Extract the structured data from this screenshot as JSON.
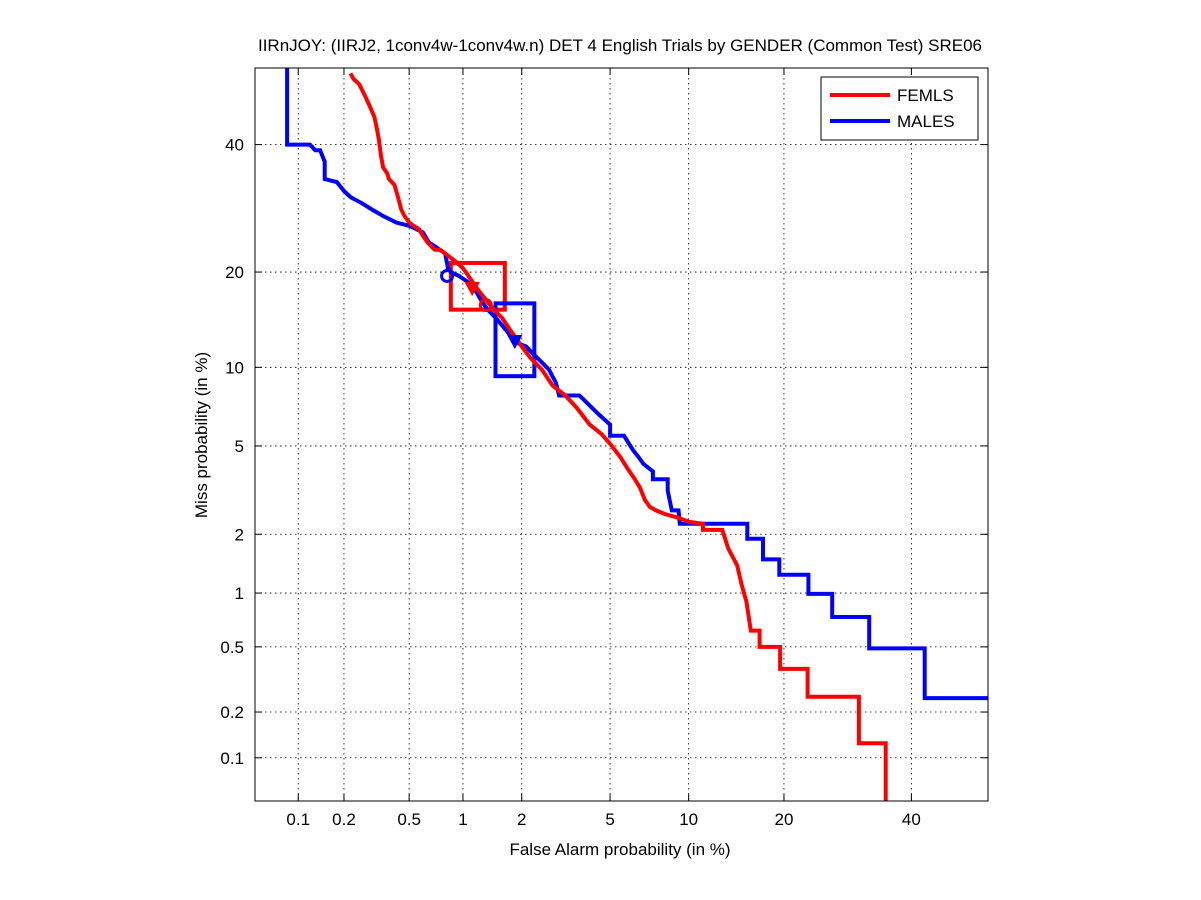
{
  "chart_data": {
    "type": "line",
    "title": "IIRnJOY: (IIRJ2, 1conv4w-1conv4w.n) DET 4 English Trials by GENDER (Common Test) SRE06",
    "xlabel": "False Alarm probability (in %)",
    "ylabel": "Miss probability (in %)",
    "x_scale": "probit",
    "y_scale": "probit",
    "xlim": [
      0.05,
      54
    ],
    "ylim": [
      0.05,
      54
    ],
    "x_ticks": [
      0.1,
      0.2,
      0.5,
      1,
      2,
      5,
      10,
      20,
      40
    ],
    "x_tick_labels": [
      "0.1",
      "0.2",
      "0.5",
      "1",
      "2",
      "5",
      "10",
      "20",
      "40"
    ],
    "y_ticks": [
      0.1,
      0.2,
      0.5,
      1,
      2,
      5,
      10,
      20,
      40
    ],
    "y_tick_labels": [
      "0.1",
      "0.2",
      "0.5",
      "1",
      "2",
      "5",
      "10",
      "20",
      "40"
    ],
    "grid": true,
    "legend_position": "top-right",
    "series": [
      {
        "name": "FEMLS",
        "color": "#ff0000",
        "points": [
          [
            0.22,
            53
          ],
          [
            0.23,
            52
          ],
          [
            0.25,
            51
          ],
          [
            0.27,
            49
          ],
          [
            0.29,
            47
          ],
          [
            0.31,
            45
          ],
          [
            0.32,
            43
          ],
          [
            0.33,
            41
          ],
          [
            0.34,
            38
          ],
          [
            0.35,
            36
          ],
          [
            0.37,
            35
          ],
          [
            0.38,
            34
          ],
          [
            0.41,
            33
          ],
          [
            0.43,
            31
          ],
          [
            0.45,
            29
          ],
          [
            0.47,
            28
          ],
          [
            0.5,
            27
          ],
          [
            0.53,
            26.5
          ],
          [
            0.57,
            26
          ],
          [
            0.6,
            25
          ],
          [
            0.64,
            24
          ],
          [
            0.7,
            23
          ],
          [
            0.75,
            23
          ],
          [
            0.8,
            22.5
          ],
          [
            0.9,
            21.5
          ],
          [
            0.95,
            21
          ],
          [
            1.0,
            20.5
          ],
          [
            1.05,
            19.8
          ],
          [
            1.12,
            18.8
          ],
          [
            1.2,
            17.8
          ],
          [
            1.3,
            16.8
          ],
          [
            1.4,
            15.9
          ],
          [
            1.5,
            15.2
          ],
          [
            1.6,
            14.6
          ],
          [
            1.75,
            13.4
          ],
          [
            2.0,
            11.8
          ],
          [
            2.2,
            10.8
          ],
          [
            2.5,
            9.8
          ],
          [
            2.8,
            8.6
          ],
          [
            3.2,
            7.9
          ],
          [
            3.6,
            7.1
          ],
          [
            4.1,
            6.1
          ],
          [
            4.6,
            5.6
          ],
          [
            5.0,
            5.1
          ],
          [
            5.5,
            4.5
          ],
          [
            5.9,
            4.0
          ],
          [
            6.3,
            3.6
          ],
          [
            6.6,
            3.3
          ],
          [
            6.9,
            2.9
          ],
          [
            7.2,
            2.7
          ],
          [
            7.6,
            2.6
          ],
          [
            8.2,
            2.5
          ],
          [
            9.2,
            2.4
          ],
          [
            10.0,
            2.3
          ],
          [
            11.2,
            2.25
          ],
          [
            11.2,
            2.1
          ],
          [
            13.0,
            2.1
          ],
          [
            13.6,
            1.7
          ],
          [
            14.5,
            1.4
          ],
          [
            15.0,
            1.1
          ],
          [
            15.5,
            0.9
          ],
          [
            16.0,
            0.62
          ],
          [
            17.0,
            0.62
          ],
          [
            17.0,
            0.5
          ],
          [
            19.5,
            0.5
          ],
          [
            19.5,
            0.37
          ],
          [
            23.2,
            0.37
          ],
          [
            23.2,
            0.25
          ],
          [
            31.0,
            0.25
          ],
          [
            31.0,
            0.125
          ],
          [
            35.5,
            0.125
          ],
          [
            35.5,
            0.05
          ]
        ]
      },
      {
        "name": "MALES",
        "color": "#0000ff",
        "points": [
          [
            0.084,
            54
          ],
          [
            0.084,
            40
          ],
          [
            0.12,
            40
          ],
          [
            0.13,
            39
          ],
          [
            0.14,
            39
          ],
          [
            0.15,
            37
          ],
          [
            0.15,
            34
          ],
          [
            0.18,
            33.5
          ],
          [
            0.2,
            32
          ],
          [
            0.22,
            31
          ],
          [
            0.26,
            30
          ],
          [
            0.3,
            29
          ],
          [
            0.35,
            28
          ],
          [
            0.42,
            27
          ],
          [
            0.5,
            26.5
          ],
          [
            0.55,
            26
          ],
          [
            0.6,
            25.5
          ],
          [
            0.65,
            24
          ],
          [
            0.7,
            23.5
          ],
          [
            0.8,
            22.5
          ],
          [
            0.83,
            20.5
          ],
          [
            0.86,
            20
          ],
          [
            0.95,
            19.5
          ],
          [
            1.1,
            18.5
          ],
          [
            1.18,
            17.5
          ],
          [
            1.25,
            16.5
          ],
          [
            1.35,
            15.5
          ],
          [
            1.5,
            14.5
          ],
          [
            1.7,
            13.2
          ],
          [
            1.85,
            12.2
          ],
          [
            2.1,
            11.8
          ],
          [
            2.25,
            11.2
          ],
          [
            2.5,
            10.4
          ],
          [
            2.7,
            9.8
          ],
          [
            2.9,
            8.8
          ],
          [
            3.0,
            7.9
          ],
          [
            3.7,
            7.9
          ],
          [
            4.0,
            7.4
          ],
          [
            4.4,
            6.8
          ],
          [
            5.0,
            6.1
          ],
          [
            5.0,
            5.5
          ],
          [
            5.7,
            5.5
          ],
          [
            6.2,
            4.8
          ],
          [
            6.5,
            4.5
          ],
          [
            6.8,
            4.2
          ],
          [
            7.4,
            3.9
          ],
          [
            7.4,
            3.6
          ],
          [
            8.4,
            3.6
          ],
          [
            8.4,
            3.2
          ],
          [
            8.7,
            2.6
          ],
          [
            9.2,
            2.6
          ],
          [
            9.3,
            2.25
          ],
          [
            15.6,
            2.25
          ],
          [
            15.6,
            1.9
          ],
          [
            17.4,
            1.9
          ],
          [
            17.4,
            1.5
          ],
          [
            19.4,
            1.5
          ],
          [
            19.4,
            1.25
          ],
          [
            23.3,
            1.25
          ],
          [
            23.3,
            0.99
          ],
          [
            26.8,
            0.99
          ],
          [
            26.8,
            0.74
          ],
          [
            32.7,
            0.74
          ],
          [
            32.7,
            0.49
          ],
          [
            42.4,
            0.49
          ],
          [
            42.4,
            0.245
          ],
          [
            54,
            0.245
          ]
        ]
      }
    ],
    "markers": [
      {
        "series": "FEMLS",
        "shape": "circle",
        "x": 1.32,
        "y": 16.0
      },
      {
        "series": "FEMLS",
        "shape": "triangle",
        "x": 1.12,
        "y": 18.0
      },
      {
        "series": "MALES",
        "shape": "circle",
        "x": 0.82,
        "y": 19.5
      },
      {
        "series": "MALES",
        "shape": "triangle",
        "x": 1.85,
        "y": 12.3
      }
    ],
    "confidence_boxes": [
      {
        "series": "FEMLS",
        "x_range": [
          0.86,
          1.65
        ],
        "y_range": [
          15.5,
          21.2
        ]
      },
      {
        "series": "MALES",
        "x_range": [
          1.48,
          2.3
        ],
        "y_range": [
          9.3,
          16.2
        ]
      }
    ]
  }
}
